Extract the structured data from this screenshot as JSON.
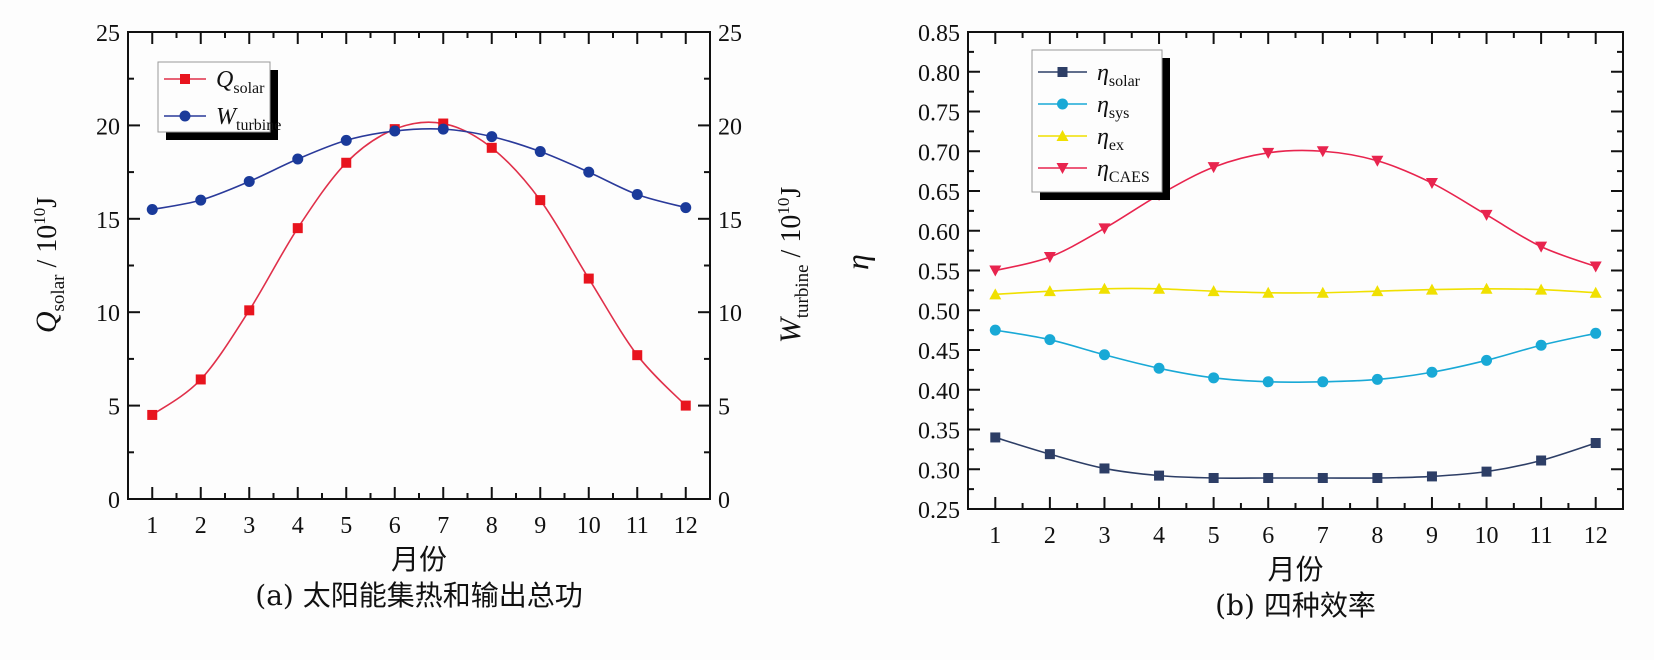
{
  "chart_data": [
    {
      "id": "a",
      "type": "line",
      "title": "",
      "caption": "(a) 太阳能集热和输出总功",
      "xlabel": "月份",
      "ylabel_left": {
        "main": "Q",
        "sub": "solar",
        "unit": " / 10",
        "exp": "10",
        "tail": "J"
      },
      "ylabel_right": {
        "main": "W",
        "sub": "turbine",
        "unit": " / 10",
        "exp": "10",
        "tail": "J"
      },
      "x": [
        1,
        2,
        3,
        4,
        5,
        6,
        7,
        8,
        9,
        10,
        11,
        12
      ],
      "x_tick_labels": [
        "1",
        "2",
        "3",
        "4",
        "5",
        "6",
        "7",
        "8",
        "9",
        "10",
        "11",
        "12"
      ],
      "xlim": [
        0.5,
        12.5
      ],
      "ylim": [
        0,
        25
      ],
      "y_ticks": [
        0,
        5,
        10,
        15,
        20,
        25
      ],
      "y_tick_labels": [
        "0",
        "5",
        "10",
        "15",
        "20",
        "25"
      ],
      "y_right_ticks": [
        0,
        5,
        10,
        15,
        20,
        25
      ],
      "y_right_tick_labels": [
        "0",
        "5",
        "10",
        "15",
        "20",
        "25"
      ],
      "legend_position": "top-left",
      "grid": false,
      "series": [
        {
          "name": "Q",
          "sub": "solar",
          "color": "#e8141e",
          "line_color": "#e0304a",
          "marker": "square",
          "axis": "left",
          "values": [
            4.5,
            6.4,
            10.1,
            14.5,
            18.0,
            19.8,
            20.1,
            18.8,
            16.0,
            11.8,
            7.7,
            5.0
          ]
        },
        {
          "name": "W",
          "sub": "turbine",
          "color": "#1a3a9a",
          "line_color": "#2a3a9a",
          "marker": "circle",
          "axis": "right",
          "values": [
            15.5,
            16.0,
            17.0,
            18.2,
            19.2,
            19.7,
            19.8,
            19.4,
            18.6,
            17.5,
            16.3,
            15.6
          ]
        }
      ]
    },
    {
      "id": "b",
      "type": "line",
      "title": "",
      "caption": "(b) 四种效率",
      "xlabel": "月份",
      "ylabel": "η",
      "x": [
        1,
        2,
        3,
        4,
        5,
        6,
        7,
        8,
        9,
        10,
        11,
        12
      ],
      "x_tick_labels": [
        "1",
        "2",
        "3",
        "4",
        "5",
        "6",
        "7",
        "8",
        "9",
        "10",
        "11",
        "12"
      ],
      "xlim": [
        0.5,
        12.5
      ],
      "ylim": [
        0.25,
        0.85
      ],
      "y_ticks": [
        0.25,
        0.3,
        0.35,
        0.4,
        0.45,
        0.5,
        0.55,
        0.6,
        0.65,
        0.7,
        0.75,
        0.8,
        0.85
      ],
      "y_tick_labels": [
        "0.25",
        "0.30",
        "0.35",
        "0.40",
        "0.45",
        "0.50",
        "0.55",
        "0.60",
        "0.65",
        "0.70",
        "0.75",
        "0.80",
        "0.85"
      ],
      "legend_position": "top-left",
      "grid": false,
      "series": [
        {
          "name": "η",
          "sub": "solar",
          "color": "#2d3e66",
          "marker": "square",
          "values": [
            0.34,
            0.319,
            0.301,
            0.292,
            0.289,
            0.289,
            0.289,
            0.289,
            0.291,
            0.297,
            0.311,
            0.333
          ]
        },
        {
          "name": "η",
          "sub": "sys",
          "color": "#19a9d6",
          "marker": "circle",
          "values": [
            0.475,
            0.463,
            0.444,
            0.427,
            0.415,
            0.41,
            0.41,
            0.413,
            0.422,
            0.437,
            0.456,
            0.471
          ]
        },
        {
          "name": "η",
          "sub": "ex",
          "color": "#f0e000",
          "marker": "triangle-up",
          "values": [
            0.52,
            0.524,
            0.527,
            0.527,
            0.524,
            0.522,
            0.522,
            0.524,
            0.526,
            0.527,
            0.526,
            0.522
          ]
        },
        {
          "name": "η",
          "sub": "CAES",
          "color": "#e8244e",
          "marker": "triangle-down",
          "values": [
            0.55,
            0.567,
            0.603,
            0.645,
            0.68,
            0.698,
            0.7,
            0.688,
            0.66,
            0.62,
            0.58,
            0.555
          ]
        }
      ]
    }
  ]
}
